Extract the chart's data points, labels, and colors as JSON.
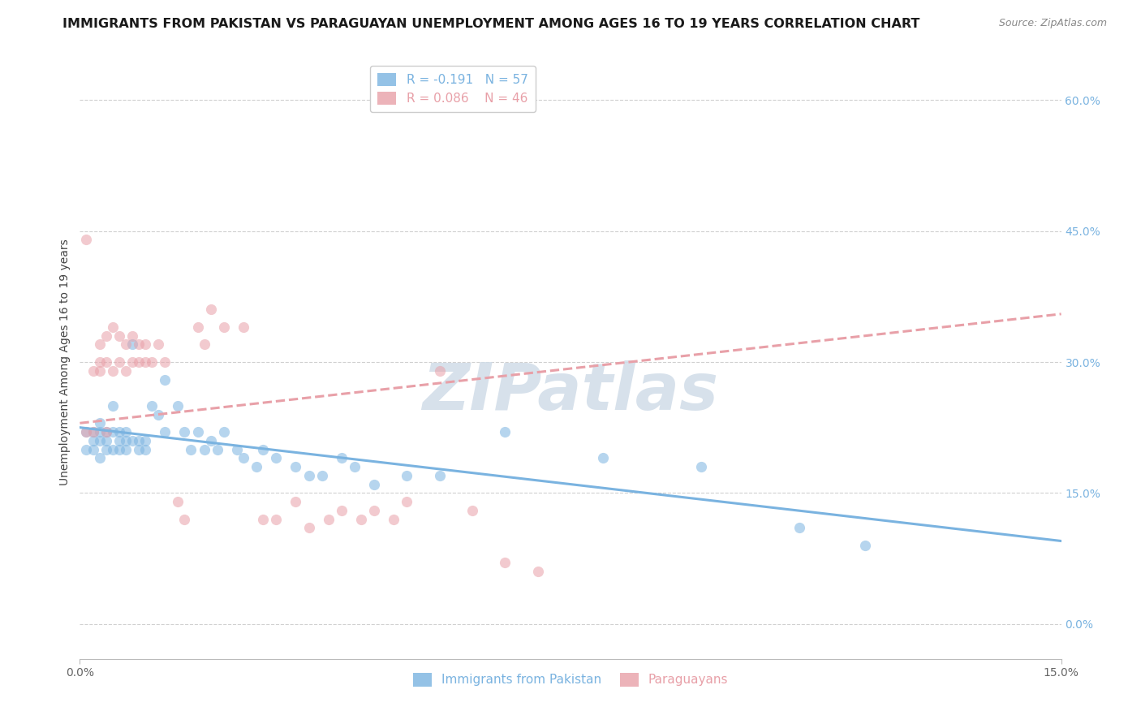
{
  "title": "IMMIGRANTS FROM PAKISTAN VS PARAGUAYAN UNEMPLOYMENT AMONG AGES 16 TO 19 YEARS CORRELATION CHART",
  "source": "Source: ZipAtlas.com",
  "ylabel": "Unemployment Among Ages 16 to 19 years",
  "right_yticklabels": [
    "0.0%",
    "15.0%",
    "30.0%",
    "45.0%",
    "60.0%"
  ],
  "right_ytick_vals": [
    0.0,
    0.15,
    0.3,
    0.45,
    0.6
  ],
  "xmin": 0.0,
  "xmax": 0.15,
  "ymin": -0.04,
  "ymax": 0.64,
  "blue_color": "#7ab3e0",
  "pink_color": "#e8a0a8",
  "legend1_label1": "R = -0.191   N = 57",
  "legend1_label2": "R = 0.086    N = 46",
  "legend2_label1": "Immigrants from Pakistan",
  "legend2_label2": "Paraguayans",
  "blue_scatter_x": [
    0.001,
    0.001,
    0.002,
    0.002,
    0.002,
    0.003,
    0.003,
    0.003,
    0.003,
    0.004,
    0.004,
    0.004,
    0.005,
    0.005,
    0.005,
    0.006,
    0.006,
    0.006,
    0.007,
    0.007,
    0.007,
    0.008,
    0.008,
    0.009,
    0.009,
    0.01,
    0.01,
    0.011,
    0.012,
    0.013,
    0.013,
    0.015,
    0.016,
    0.017,
    0.018,
    0.019,
    0.02,
    0.021,
    0.022,
    0.024,
    0.025,
    0.027,
    0.028,
    0.03,
    0.033,
    0.035,
    0.037,
    0.04,
    0.042,
    0.045,
    0.05,
    0.055,
    0.065,
    0.08,
    0.095,
    0.11,
    0.12
  ],
  "blue_scatter_y": [
    0.2,
    0.22,
    0.2,
    0.21,
    0.22,
    0.19,
    0.21,
    0.22,
    0.23,
    0.2,
    0.21,
    0.22,
    0.2,
    0.22,
    0.25,
    0.2,
    0.21,
    0.22,
    0.2,
    0.21,
    0.22,
    0.21,
    0.32,
    0.2,
    0.21,
    0.2,
    0.21,
    0.25,
    0.24,
    0.22,
    0.28,
    0.25,
    0.22,
    0.2,
    0.22,
    0.2,
    0.21,
    0.2,
    0.22,
    0.2,
    0.19,
    0.18,
    0.2,
    0.19,
    0.18,
    0.17,
    0.17,
    0.19,
    0.18,
    0.16,
    0.17,
    0.17,
    0.22,
    0.19,
    0.18,
    0.11,
    0.09
  ],
  "pink_scatter_x": [
    0.001,
    0.001,
    0.002,
    0.002,
    0.003,
    0.003,
    0.003,
    0.004,
    0.004,
    0.004,
    0.005,
    0.005,
    0.006,
    0.006,
    0.007,
    0.007,
    0.008,
    0.008,
    0.009,
    0.009,
    0.01,
    0.01,
    0.011,
    0.012,
    0.013,
    0.015,
    0.016,
    0.018,
    0.019,
    0.02,
    0.022,
    0.025,
    0.028,
    0.03,
    0.033,
    0.035,
    0.038,
    0.04,
    0.043,
    0.045,
    0.048,
    0.05,
    0.055,
    0.06,
    0.065,
    0.07
  ],
  "pink_scatter_y": [
    0.44,
    0.22,
    0.22,
    0.29,
    0.3,
    0.29,
    0.32,
    0.3,
    0.33,
    0.22,
    0.29,
    0.34,
    0.3,
    0.33,
    0.29,
    0.32,
    0.3,
    0.33,
    0.3,
    0.32,
    0.3,
    0.32,
    0.3,
    0.32,
    0.3,
    0.14,
    0.12,
    0.34,
    0.32,
    0.36,
    0.34,
    0.34,
    0.12,
    0.12,
    0.14,
    0.11,
    0.12,
    0.13,
    0.12,
    0.13,
    0.12,
    0.14,
    0.29,
    0.13,
    0.07,
    0.06
  ],
  "blue_line_x": [
    0.0,
    0.15
  ],
  "blue_line_y": [
    0.225,
    0.095
  ],
  "pink_line_x": [
    0.0,
    0.15
  ],
  "pink_line_y": [
    0.23,
    0.355
  ],
  "watermark_text": "ZIPatlas",
  "watermark_color": "#d0dce8",
  "scatter_alpha": 0.55,
  "scatter_size": 90,
  "grid_color": "#d0d0d0",
  "background_color": "#ffffff",
  "title_fontsize": 11.5,
  "source_fontsize": 9,
  "axis_label_fontsize": 10,
  "tick_label_fontsize": 10,
  "legend_fontsize": 11
}
